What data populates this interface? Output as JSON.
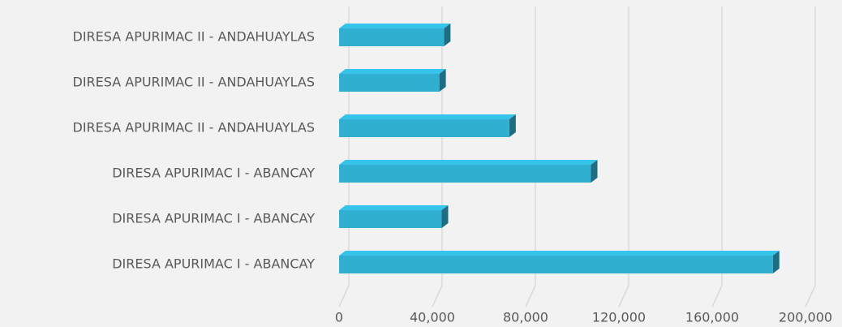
{
  "chart_data": {
    "type": "bar3d_horizontal",
    "categories": [
      "DIRESA APURIMAC II - ANDAHUAYLAS",
      "DIRESA APURIMAC II - ANDAHUAYLAS",
      "DIRESA APURIMAC II - ANDAHUAYLAS",
      "DIRESA APURIMAC I - ABANCAY",
      "DIRESA APURIMAC I - ABANCAY",
      "DIRESA APURIMAC I - ABANCAY"
    ],
    "values": [
      45000,
      43000,
      73000,
      108000,
      44000,
      186000
    ],
    "color": "#31afd1",
    "xlim": [
      0,
      200000
    ],
    "xticks": [
      0,
      {
        "value": 40000,
        "label": "40,000"
      },
      {
        "value": 80000,
        "label": "80,000"
      },
      {
        "value": 120000,
        "label": "120,000"
      },
      {
        "value": 160000,
        "label": "160,000"
      },
      {
        "value": 200000,
        "label": "200,000"
      }
    ],
    "grid": true
  }
}
